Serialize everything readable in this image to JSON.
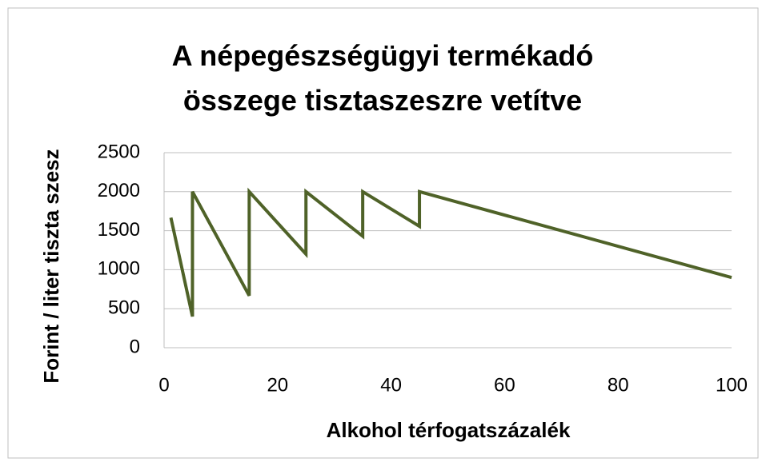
{
  "chart_data": {
    "type": "line",
    "title": "A népegészségügyi termékadó összege tisztaszeszre vetítve",
    "x_label": "Alkohol térfogatszázalék",
    "y_label": "Forint / liter tiszta szesz",
    "x": [
      1.2,
      5,
      5,
      15,
      15,
      25,
      25,
      35,
      35,
      45,
      45,
      100
    ],
    "values": [
      1667,
      400,
      2000,
      667,
      2000,
      1200,
      2000,
      1429,
      2000,
      1556,
      2000,
      900
    ],
    "color": "#4f6228",
    "xlim": [
      0,
      100
    ],
    "xticks": [
      0,
      20,
      40,
      60,
      80,
      100
    ],
    "ylim": [
      0,
      2500
    ],
    "yticks": [
      0,
      500,
      1000,
      1500,
      2000,
      2500
    ],
    "grid": true
  }
}
